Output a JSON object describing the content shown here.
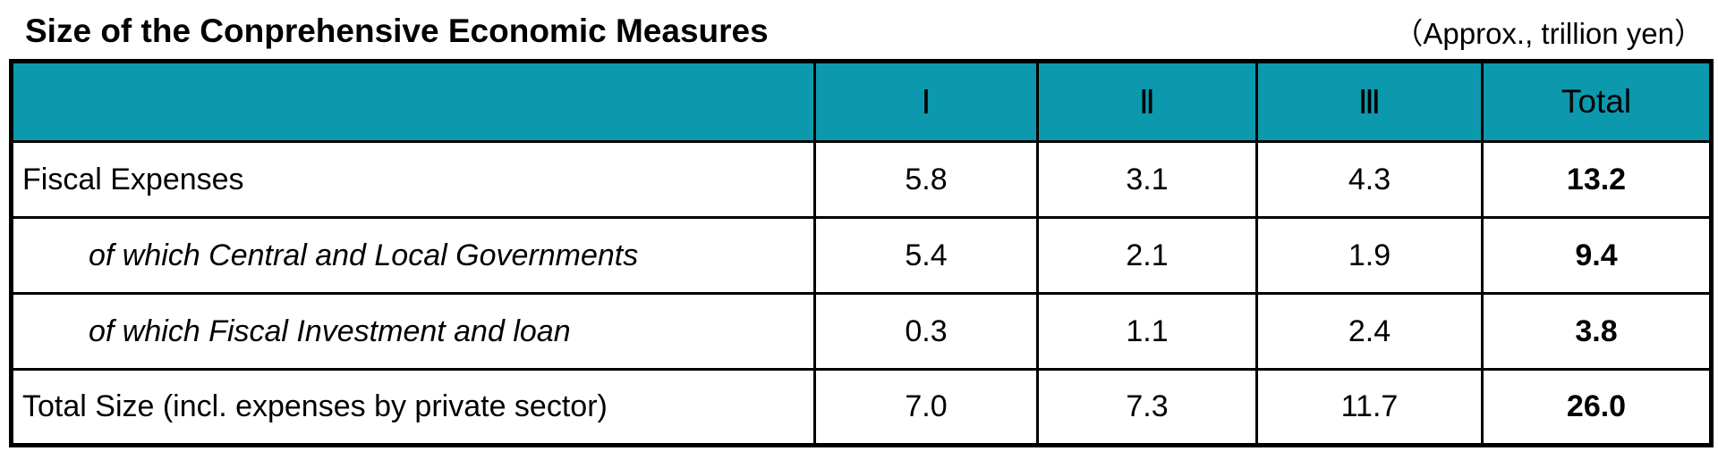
{
  "title": "Size of the Conprehensive Economic Measures",
  "unit_note": "（Approx., trillion yen）",
  "colors": {
    "header_bg": "#0C99AE",
    "border": "#000000",
    "text": "#000000",
    "background": "#FFFFFF"
  },
  "table": {
    "columns": [
      "",
      "Ⅰ",
      "Ⅱ",
      "Ⅲ",
      "Total"
    ],
    "rows": [
      {
        "label": "Fiscal Expenses",
        "values": [
          "5.8",
          "3.1",
          "4.3"
        ],
        "total": "13.2"
      },
      {
        "label": "of which Central and Local Governments",
        "values": [
          "5.4",
          "2.1",
          "1.9"
        ],
        "total": "9.4"
      },
      {
        "label": "of which Fiscal Investment and loan",
        "values": [
          "0.3",
          "1.1",
          "2.4"
        ],
        "total": "3.8"
      },
      {
        "label": "Total Size (incl. expenses by private sector)",
        "values": [
          "7.0",
          "7.3",
          "11.7"
        ],
        "total": "26.0"
      }
    ]
  },
  "chart_data": {
    "type": "table",
    "title": "Size of the Conprehensive Economic Measures",
    "unit": "Approx., trillion yen",
    "columns": [
      "Ⅰ",
      "Ⅱ",
      "Ⅲ",
      "Total"
    ],
    "rows": [
      {
        "label": "Fiscal Expenses",
        "values": [
          5.8,
          3.1,
          4.3,
          13.2
        ]
      },
      {
        "label": "of which Central and Local Governments",
        "values": [
          5.4,
          2.1,
          1.9,
          9.4
        ]
      },
      {
        "label": "of which Fiscal Investment and loan",
        "values": [
          0.3,
          1.1,
          2.4,
          3.8
        ]
      },
      {
        "label": "Total Size (incl. expenses by private sector)",
        "values": [
          7.0,
          7.3,
          11.7,
          26.0
        ]
      }
    ]
  }
}
